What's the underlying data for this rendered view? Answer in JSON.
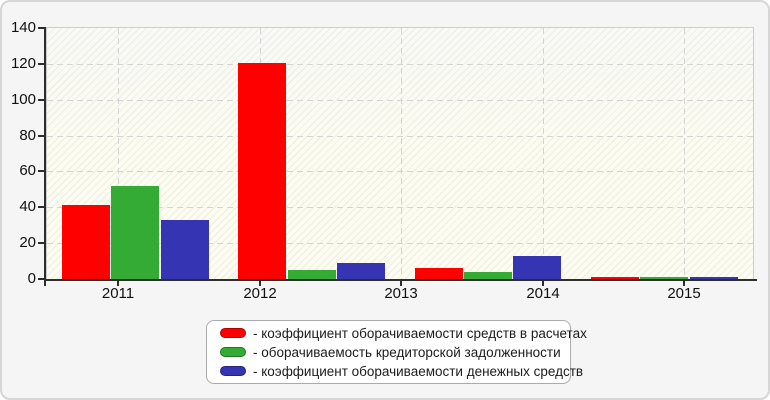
{
  "chart_data": {
    "type": "bar",
    "title": "",
    "xlabel": "",
    "ylabel": "",
    "categories": [
      "2011",
      "2012",
      "2013",
      "2014",
      "2015"
    ],
    "series": [
      {
        "name": "коэффициент оборачиваемости средств в расчетах",
        "color": "#fe0000",
        "values": [
          41,
          120.5,
          6,
          1,
          0
        ]
      },
      {
        "name": "оборачиваемость кредиторской задолженности",
        "color": "#33ab35",
        "values": [
          52,
          5,
          4,
          0.8,
          0
        ]
      },
      {
        "name": "коэффициент оборачиваемости денежных средств",
        "color": "#3535b3",
        "values": [
          33,
          9,
          13,
          0.8,
          0
        ]
      }
    ],
    "ylim": [
      0,
      140
    ],
    "yticks": [
      0,
      20,
      40,
      60,
      80,
      100,
      120,
      140
    ],
    "grid": "dashed horizontal and vertical gridlines, hatched plot background",
    "legend_position": "bottom-center"
  },
  "legend": {
    "items": [
      {
        "label": "- коэффициент оборачиваемости средств в расчетах",
        "color": "#fe0000",
        "border": "#b30000"
      },
      {
        "label": "- оборачиваемость кредиторской задолженности",
        "color": "#33ab35",
        "border": "#1e7a1e"
      },
      {
        "label": "- коэффициент оборачиваемости денежных средств",
        "color": "#3535b3",
        "border": "#22227f"
      }
    ]
  },
  "colors": {
    "panel_background": "#f5f5f5",
    "plot_background": "#fdfcf0",
    "axis": "#2d2d2d",
    "gridline": "#d4d4d4"
  }
}
